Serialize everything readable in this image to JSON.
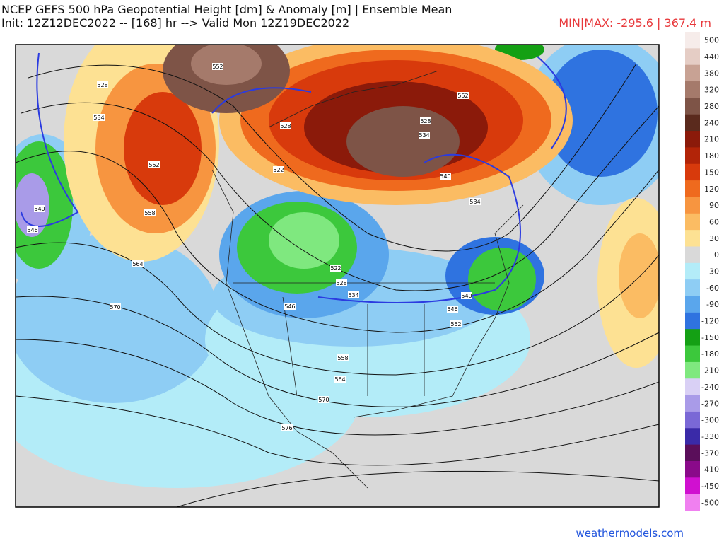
{
  "header": {
    "title": "NCEP GEFS 500 hPa Geopotential Height [dm] & Anomaly [m] | Ensemble Mean",
    "subtitle": "Init: 12Z12DEC2022 -- [168] hr --> Valid Mon 12Z19DEC2022",
    "minmax": "MIN|MAX: -295.6 | 367.4 m"
  },
  "colorbar": [
    {
      "label": 500,
      "color": "#f6ecea"
    },
    {
      "label": 440,
      "color": "#e5cdc5"
    },
    {
      "label": 380,
      "color": "#c8a294"
    },
    {
      "label": 320,
      "color": "#a57a6b"
    },
    {
      "label": 280,
      "color": "#7e5447"
    },
    {
      "label": 240,
      "color": "#5a2a1d"
    },
    {
      "label": 210,
      "color": "#8b1a0a"
    },
    {
      "label": 180,
      "color": "#b22408"
    },
    {
      "label": 150,
      "color": "#d83a0c"
    },
    {
      "label": 120,
      "color": "#ef6a1e"
    },
    {
      "label": 90,
      "color": "#f79540"
    },
    {
      "label": 60,
      "color": "#fbbc63"
    },
    {
      "label": 30,
      "color": "#fde193"
    },
    {
      "label": 0,
      "color": "#d9d9d9"
    },
    {
      "label": -30,
      "color": "#b3ecf8"
    },
    {
      "label": -60,
      "color": "#8ecdf4"
    },
    {
      "label": -90,
      "color": "#5aa6ec"
    },
    {
      "label": -120,
      "color": "#2f73e0"
    },
    {
      "label": -150,
      "color": "#14a014"
    },
    {
      "label": -180,
      "color": "#3cc83c"
    },
    {
      "label": -210,
      "color": "#7fe87f"
    },
    {
      "label": -240,
      "color": "#d9d0f5"
    },
    {
      "label": -270,
      "color": "#a99be8"
    },
    {
      "label": -300,
      "color": "#7a68d6"
    },
    {
      "label": -330,
      "color": "#3a2aa8"
    },
    {
      "label": -370,
      "color": "#5a0e5a"
    },
    {
      "label": -410,
      "color": "#8a0a8a"
    },
    {
      "label": -450,
      "color": "#d010d0"
    },
    {
      "label": -500,
      "color": "#f080f0"
    }
  ],
  "contour_labels": [
    528,
    534,
    552,
    528,
    522,
    552,
    558,
    564,
    570,
    540,
    546,
    522,
    528,
    534,
    546,
    558,
    564,
    570,
    576,
    528,
    534,
    540,
    534,
    540,
    546,
    552,
    552
  ],
  "footer": {
    "credit": "weathermodels.com"
  }
}
